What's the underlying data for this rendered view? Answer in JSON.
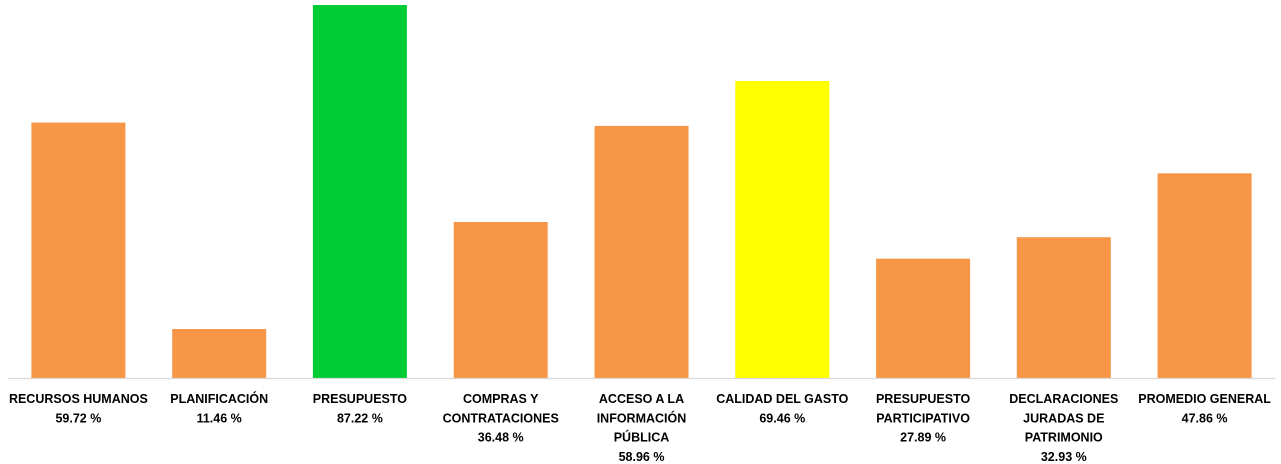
{
  "chart_data": {
    "type": "bar",
    "categories": [
      [
        "RECURSOS HUMANOS"
      ],
      [
        "PLANIFICACIÓN"
      ],
      [
        "PRESUPUESTO"
      ],
      [
        "COMPRAS Y",
        "CONTRATACIONES"
      ],
      [
        "ACCESO A LA",
        "INFORMACIÓN",
        "PÚBLICA"
      ],
      [
        "CALIDAD DEL GASTO"
      ],
      [
        "PRESUPUESTO",
        "PARTICIPATIVO"
      ],
      [
        "DECLARACIONES",
        "JURADAS DE",
        "PATRIMONIO"
      ],
      [
        "PROMEDIO GENERAL"
      ]
    ],
    "values": [
      59.72,
      11.46,
      87.22,
      36.48,
      58.96,
      69.46,
      27.89,
      32.93,
      47.86
    ],
    "value_labels": [
      "59.72 %",
      "11.46 %",
      "87.22 %",
      "36.48 %",
      "58.96 %",
      "69.46 %",
      "27.89 %",
      "32.93 %",
      "47.86 %"
    ],
    "bar_colors": [
      "#F79646",
      "#F79646",
      "#00CC33",
      "#F79646",
      "#F79646",
      "#FFFF00",
      "#F79646",
      "#F79646",
      "#F79646"
    ],
    "title": "",
    "xlabel": "",
    "ylabel": "",
    "ylim": [
      0,
      87.22
    ],
    "grid": false,
    "legend": "none",
    "axis_color": "#D9D9D9"
  }
}
